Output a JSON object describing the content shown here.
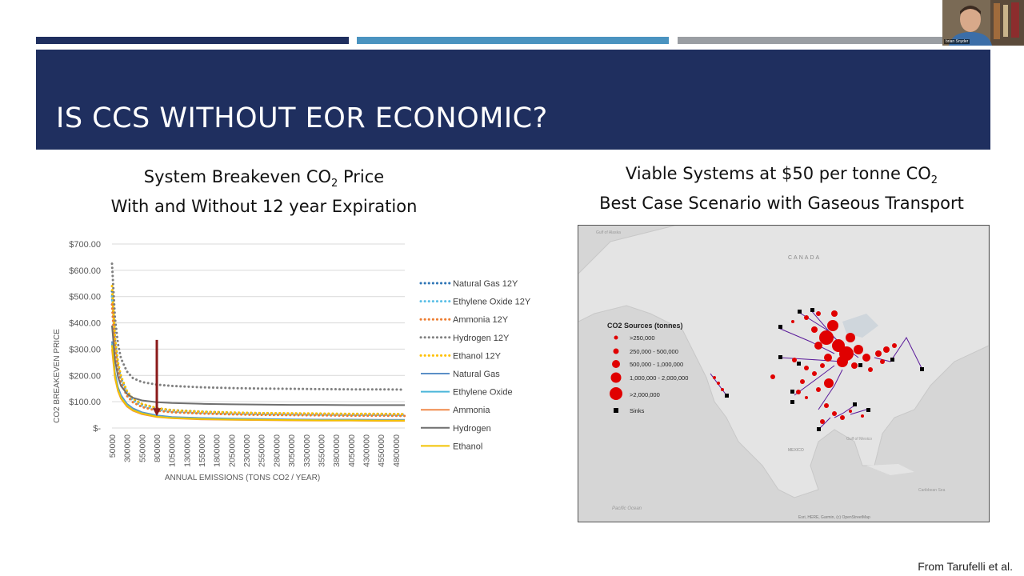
{
  "slide": {
    "title": "IS CCS WITHOUT EOR ECONOMIC?",
    "left_title_line1_a": "System Breakeven CO",
    "left_title_line1_sub": "2",
    "left_title_line1_b": " Price",
    "left_title_line2": "With and Without 12 year Expiration",
    "right_title_line1_a": "Viable Systems at $50 per tonne CO",
    "right_title_line1_sub": "2",
    "right_title_line2": "Best Case Scenario with Gaseous Transport",
    "credit": "From Tarufelli et al.",
    "bar_colors": [
      "#1f2f5f",
      "#4a93c0",
      "#9a9ea3"
    ]
  },
  "webcam": {
    "name": "brian Snyder"
  },
  "chart_data": {
    "type": "line",
    "ylabel": "CO2 BREAKEVEN PRICE",
    "xlabel": "ANNUAL EMISSIONS (TONS CO2 / YEAR)",
    "ylim": [
      0,
      700
    ],
    "yticks": [
      0,
      100,
      200,
      300,
      400,
      500,
      600,
      700
    ],
    "ytick_labels": [
      "$-",
      "$100.00",
      "$200.00",
      "$300.00",
      "$400.00",
      "$500.00",
      "$600.00",
      "$700.00"
    ],
    "x_tick_labels": [
      "50000",
      "300000",
      "550000",
      "800000",
      "1050000",
      "1300000",
      "1550000",
      "1800000",
      "2050000",
      "2300000",
      "2550000",
      "2800000",
      "3050000",
      "3300000",
      "3550000",
      "3800000",
      "4050000",
      "4300000",
      "4550000",
      "4800000"
    ],
    "x": [
      50000,
      100000,
      150000,
      200000,
      300000,
      400000,
      550000,
      800000,
      1050000,
      1550000,
      2050000,
      2550000,
      3050000,
      3550000,
      4050000,
      4550000,
      4950000
    ],
    "series": [
      {
        "name": "Natural Gas 12Y",
        "style": "dotted",
        "color": "#2e75b6",
        "values": [
          520,
          330,
          240,
          190,
          135,
          110,
          90,
          75,
          68,
          62,
          58,
          56,
          55,
          54,
          53,
          53,
          52
        ]
      },
      {
        "name": "Ethylene Oxide 12Y",
        "style": "dotted",
        "color": "#5bbfe6",
        "values": [
          500,
          315,
          228,
          182,
          128,
          104,
          85,
          70,
          63,
          58,
          55,
          53,
          52,
          51,
          50,
          50,
          49
        ]
      },
      {
        "name": "Ammonia 12Y",
        "style": "dotted",
        "color": "#ed7d31",
        "values": [
          470,
          300,
          218,
          172,
          122,
          98,
          80,
          66,
          60,
          55,
          52,
          50,
          49,
          48,
          47,
          47,
          46
        ]
      },
      {
        "name": "Hydrogen 12Y",
        "style": "dotted",
        "color": "#808080",
        "values": [
          625,
          420,
          320,
          265,
          215,
          190,
          175,
          165,
          160,
          155,
          152,
          150,
          149,
          148,
          147,
          147,
          146
        ]
      },
      {
        "name": "Ethanol 12Y",
        "style": "dotted",
        "color": "#ffc000",
        "values": [
          540,
          345,
          250,
          198,
          140,
          112,
          92,
          76,
          68,
          62,
          59,
          57,
          56,
          55,
          54,
          54,
          53
        ]
      },
      {
        "name": "Natural Gas",
        "style": "solid",
        "color": "#5b8fc7",
        "values": [
          330,
          210,
          155,
          125,
          92,
          75,
          60,
          48,
          42,
          38,
          36,
          34,
          33,
          32,
          32,
          31,
          31
        ]
      },
      {
        "name": "Ethylene Oxide",
        "style": "solid",
        "color": "#4bb6d9",
        "values": [
          320,
          200,
          148,
          118,
          88,
          70,
          57,
          45,
          40,
          36,
          34,
          32,
          31,
          30,
          30,
          29,
          29
        ]
      },
      {
        "name": "Ammonia",
        "style": "solid",
        "color": "#f08a4b",
        "values": [
          300,
          190,
          140,
          112,
          82,
          66,
          53,
          42,
          37,
          33,
          31,
          30,
          29,
          28,
          28,
          27,
          27
        ]
      },
      {
        "name": "Hydrogen",
        "style": "solid",
        "color": "#6f6f6f",
        "values": [
          390,
          260,
          195,
          160,
          130,
          115,
          105,
          98,
          95,
          92,
          90,
          89,
          88,
          88,
          87,
          87,
          87
        ]
      },
      {
        "name": "Ethanol",
        "style": "solid",
        "color": "#f2c200",
        "values": [
          315,
          195,
          143,
          115,
          85,
          68,
          55,
          43,
          38,
          34,
          32,
          31,
          30,
          29,
          29,
          28,
          28
        ]
      }
    ],
    "annotation": {
      "type": "arrow",
      "color": "#8b1a1a",
      "x": 800000,
      "y_from": 335,
      "y_to": 45
    }
  },
  "map": {
    "legend_title": "CO2 Sources (tonnes)",
    "legend_items": [
      ">250,000",
      "250,000 - 500,000",
      "500,000 - 1,000,000",
      "1,000,000 - 2,000,000",
      ">2,000,000"
    ],
    "sinks_label": "Sinks",
    "label_canada": "CANADA",
    "label_mexico": "MEXICO",
    "label_pacific": "Pacific Ocean",
    "label_gulf_alaska": "Gulf of Alaska",
    "label_gulf_mexico": "Gulf of Mexico",
    "label_caribbean": "Caribbean Sea",
    "attribution": "Esri, HERE, Garmin, (c) OpenStreetMap",
    "source_color": "#e00000",
    "pipeline_color": "#5a1a9a"
  }
}
